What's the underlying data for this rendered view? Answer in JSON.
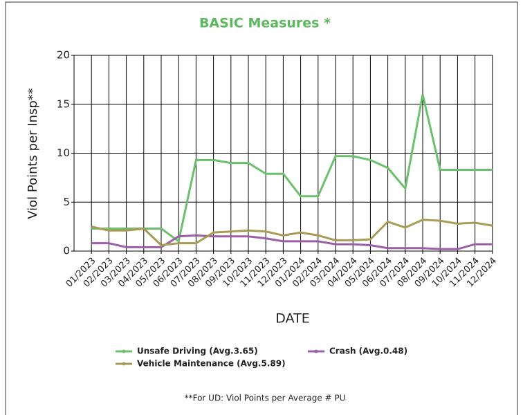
{
  "chart_data": {
    "type": "line",
    "title": "BASIC Measures *",
    "x_label": "DATE",
    "y_label": "Viol Points per Insp**",
    "footnote": "**For UD: Viol Points per Average # PU",
    "categories": [
      "01/2023",
      "02/2023",
      "03/2023",
      "04/2023",
      "05/2023",
      "06/2023",
      "07/2023",
      "08/2023",
      "09/2023",
      "10/2023",
      "11/2023",
      "12/2023",
      "01/2024",
      "02/2024",
      "03/2024",
      "04/2024",
      "05/2024",
      "06/2024",
      "07/2024",
      "08/2024",
      "09/2024",
      "10/2024",
      "11/2024",
      "12/2024"
    ],
    "series": [
      {
        "name": "Unsafe Driving (Avg.3.65)",
        "color": "#6cbf6c",
        "values": [
          2.3,
          2.3,
          2.3,
          2.3,
          2.3,
          1.0,
          9.3,
          9.3,
          9.0,
          9.0,
          7.9,
          7.9,
          5.6,
          5.6,
          9.7,
          9.7,
          9.3,
          8.5,
          6.4,
          16.0,
          8.3,
          8.3,
          8.3,
          8.3
        ]
      },
      {
        "name": "Crash (Avg.0.48)",
        "color": "#9b5fa8",
        "values": [
          0.8,
          0.8,
          0.4,
          0.4,
          0.4,
          1.5,
          1.6,
          1.5,
          1.5,
          1.5,
          1.3,
          1.0,
          1.0,
          1.0,
          0.7,
          0.7,
          0.6,
          0.3,
          0.3,
          0.3,
          0.2,
          0.2,
          0.7,
          0.7
        ]
      },
      {
        "name": "Vehicle Maintenance (Avg.5.89)",
        "color": "#a89c55",
        "values": [
          2.5,
          2.1,
          2.1,
          2.3,
          0.6,
          0.8,
          0.8,
          1.9,
          2.0,
          2.1,
          2.0,
          1.6,
          1.9,
          1.6,
          1.1,
          1.1,
          1.2,
          3.0,
          2.4,
          3.2,
          3.1,
          2.8,
          2.9,
          2.6
        ]
      }
    ],
    "ylim": [
      0,
      20
    ],
    "yticks": [
      0,
      5,
      10,
      15,
      20
    ],
    "grid": true
  }
}
